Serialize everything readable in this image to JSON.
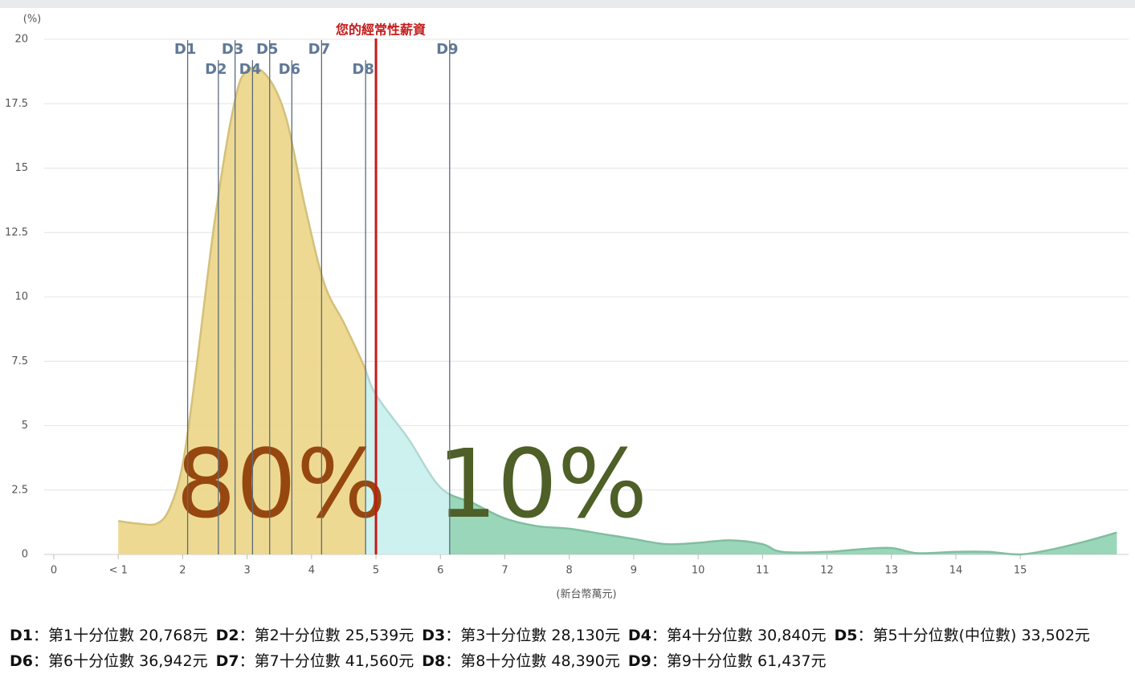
{
  "chart_data": {
    "type": "area",
    "y_unit": "(%)",
    "x_label": "(新台幣萬元)",
    "x": [
      1,
      1.3,
      1.6,
      1.8,
      2.0,
      2.2,
      2.5,
      2.8,
      3.0,
      3.3,
      3.6,
      3.9,
      4.2,
      4.5,
      4.8,
      5.0,
      5.5,
      6.0,
      6.5,
      7.0,
      7.5,
      8.0,
      8.5,
      9.0,
      9.5,
      10.0,
      10.5,
      11.0,
      11.3,
      12.0,
      12.5,
      13.0,
      13.4,
      14.0,
      14.5,
      15.0,
      15.5,
      16.0,
      16.5
    ],
    "values": [
      1.3,
      1.2,
      1.2,
      1.8,
      3.5,
      7.0,
      13.0,
      17.5,
      18.8,
      18.6,
      17.0,
      13.5,
      10.5,
      9.0,
      7.4,
      6.2,
      4.5,
      2.6,
      2.0,
      1.4,
      1.1,
      1.0,
      0.8,
      0.6,
      0.4,
      0.45,
      0.55,
      0.4,
      0.1,
      0.1,
      0.2,
      0.25,
      0.05,
      0.1,
      0.1,
      0.0,
      0.2,
      0.5,
      0.85
    ],
    "region_colors": {
      "low": "#ecd587",
      "mid": "#c6efec",
      "high": "#8fd3b2"
    },
    "xlim": [
      0,
      16.5
    ],
    "ylim": [
      0,
      20
    ],
    "xticks": [
      0,
      {
        "value": 1,
        "label": "< 1"
      },
      2,
      3,
      4,
      5,
      6,
      7,
      8,
      9,
      10,
      11,
      12,
      13,
      14,
      15
    ],
    "yticks": [
      0,
      2.5,
      5,
      7.5,
      10,
      12.5,
      15,
      17.5,
      20
    ],
    "grid": true,
    "deciles": [
      {
        "label": "D1",
        "value": 2.0768,
        "note": "：第1十分位數 20,768元"
      },
      {
        "label": "D2",
        "value": 2.5539,
        "note": "：第2十分位數 25,539元"
      },
      {
        "label": "D3",
        "value": 2.813,
        "note": "：第3十分位數 28,130元"
      },
      {
        "label": "D4",
        "value": 3.084,
        "note": "：第4十分位數 30,840元"
      },
      {
        "label": "D5",
        "value": 3.3502,
        "note": "：第5十分位數(中位數) 33,502元"
      },
      {
        "label": "D6",
        "value": 3.6942,
        "note": "：第6十分位數 36,942元"
      },
      {
        "label": "D7",
        "value": 4.156,
        "note": "：第7十分位數 41,560元"
      },
      {
        "label": "D8",
        "value": 4.839,
        "note": "：第8十分位數 48,390元"
      },
      {
        "label": "D9",
        "value": 6.1437,
        "note": "：第9十分位數 61,437元"
      }
    ],
    "marker": {
      "label": "您的經常性薪資",
      "value": 5.0,
      "color": "#c41a1a"
    },
    "annotations": [
      {
        "text": "80%",
        "color": "#96470f"
      },
      {
        "text": "10%",
        "color": "#4e5f27"
      }
    ]
  }
}
